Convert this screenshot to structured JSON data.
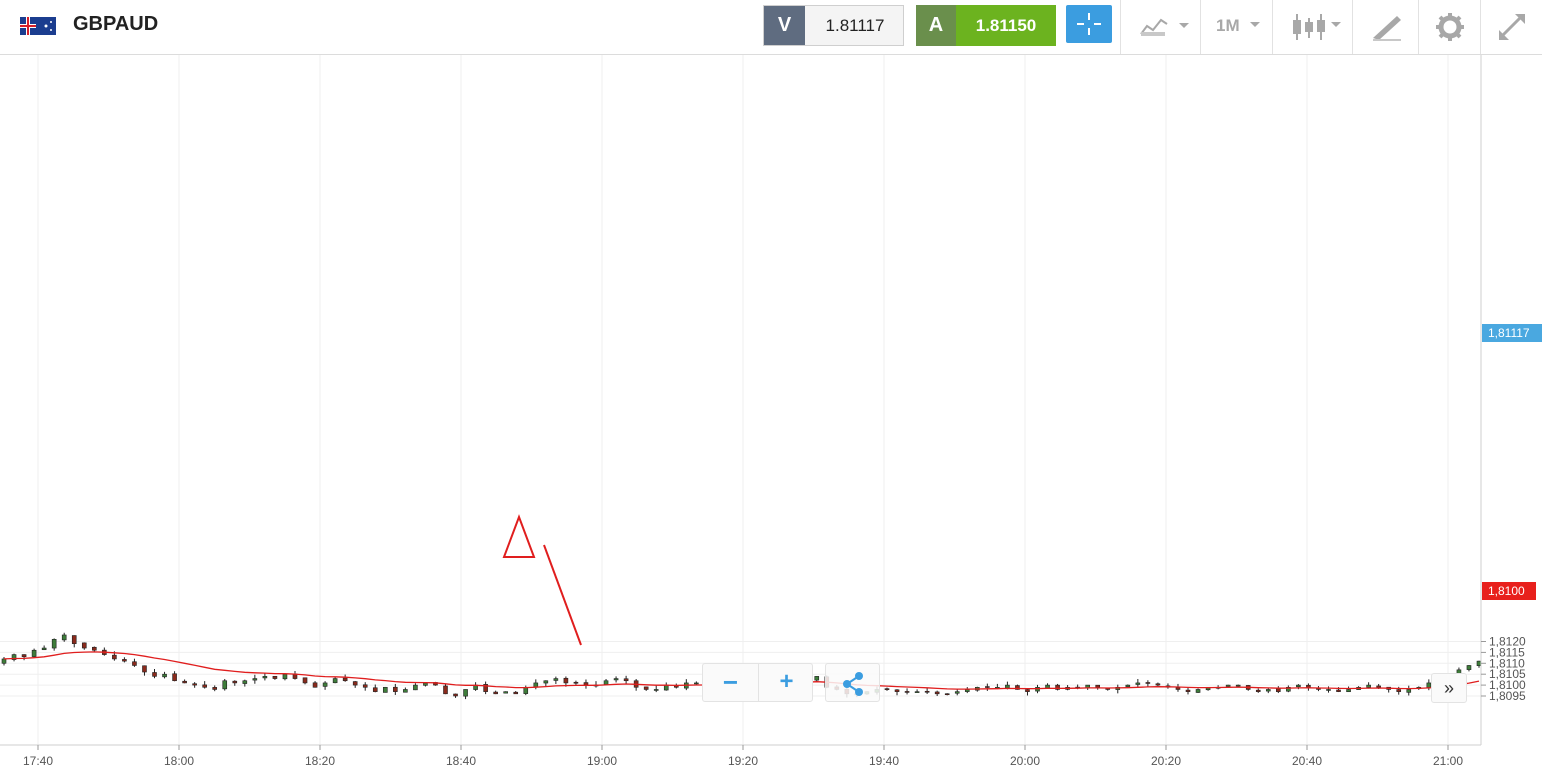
{
  "header": {
    "symbol": "GBPAUD",
    "flag_icon": "gb-au-flag-icon",
    "sell_label": "V",
    "sell_price": "1.81117",
    "buy_label": "A",
    "buy_price": "1.81150",
    "timeframe": "1M",
    "colors": {
      "sell_tag": "#5f6c80",
      "buy_tag": "#6a8f4c",
      "buy_price_bg": "#6cb31f",
      "crosshair_bg": "#3b9de0"
    }
  },
  "toolbar": {
    "icons": [
      "crosshair-icon",
      "chart-type-icon",
      "timeframe-dropdown",
      "indicators-icon",
      "drawing-tools-icon",
      "settings-icon",
      "fullscreen-icon"
    ]
  },
  "chart_data": {
    "type": "candlestick",
    "title": "GBPAUD",
    "xlabel": "",
    "ylabel": "",
    "ylim": [
      1.80935,
      1.81255
    ],
    "yticks": [
      "1,8095",
      "1,8100",
      "1,8105",
      "1,8110",
      "1,8115",
      "1,8120"
    ],
    "xticks": [
      "17:40",
      "18:00",
      "18:20",
      "18:40",
      "19:00",
      "19:20",
      "19:40",
      "20:00",
      "20:20",
      "20:40",
      "21:00"
    ],
    "current_price_label": "1,81117",
    "ma_price_label": "1,8100",
    "grid": true,
    "colors": {
      "up": "#3e7d3a",
      "down": "#8a2a1c",
      "ma": "#e01e1e",
      "current_tag": "#4aa8e0",
      "ma_tag": "#e8201c"
    },
    "candles_close_series": [
      1.8112,
      1.8114,
      1.8113,
      1.8116,
      1.8117,
      1.8121,
      1.8123,
      1.8119,
      1.8117,
      1.8116,
      1.8114,
      1.8112,
      1.8111,
      1.8109,
      1.8106,
      1.8104,
      1.8105,
      1.8102,
      1.8101,
      1.81,
      1.8099,
      1.8098,
      1.8102,
      1.8101,
      1.8102,
      1.8103,
      1.8104,
      1.8103,
      1.8105,
      1.8103,
      1.8101,
      1.8099,
      1.8101,
      1.8103,
      1.8102,
      1.81,
      1.8099,
      1.8097,
      1.8099,
      1.8097,
      1.8098,
      1.81,
      1.8101,
      1.81,
      1.8096,
      1.8095,
      1.8098,
      1.81,
      1.8097,
      1.8096,
      1.8097,
      1.8096,
      1.8099,
      1.8101,
      1.8102,
      1.8103,
      1.8101,
      1.8101,
      1.81,
      1.81,
      1.8102,
      1.8103,
      1.8102,
      1.8099,
      1.8098,
      1.8098,
      1.81,
      1.8099,
      1.8101,
      1.8101,
      1.81,
      1.8101,
      1.8103,
      1.8103,
      1.8102,
      1.8102,
      1.8101,
      1.8102,
      1.8103,
      1.8102,
      1.8102,
      1.8104,
      1.8099,
      1.8098,
      1.8096,
      1.8096,
      1.8097,
      1.8098,
      1.8098,
      1.8097,
      1.8097,
      1.8097,
      1.8097,
      1.8096,
      1.8096,
      1.8097,
      1.8098,
      1.8099,
      1.8099,
      1.8099,
      1.81,
      1.8098,
      1.8097,
      1.8099,
      1.81,
      1.8098,
      1.8099,
      1.8099,
      1.81,
      1.8099,
      1.8098,
      1.8099,
      1.81,
      1.8101,
      1.8101,
      1.81,
      1.8099,
      1.8098,
      1.8097,
      1.8098,
      1.8099,
      1.8099,
      1.81,
      1.81,
      1.8098,
      1.8097,
      1.8098,
      1.8097,
      1.8099,
      1.81,
      1.8099,
      1.8098,
      1.8098,
      1.8097,
      1.8098,
      1.8099,
      1.81,
      1.8099,
      1.8098,
      1.8097,
      1.8098,
      1.8099,
      1.8101,
      1.8102,
      1.8104,
      1.8107,
      1.8109,
      1.8111
    ]
  },
  "controls": {
    "zoom_out_label": "−",
    "zoom_in_label": "+",
    "scroll_right_label": "»"
  }
}
